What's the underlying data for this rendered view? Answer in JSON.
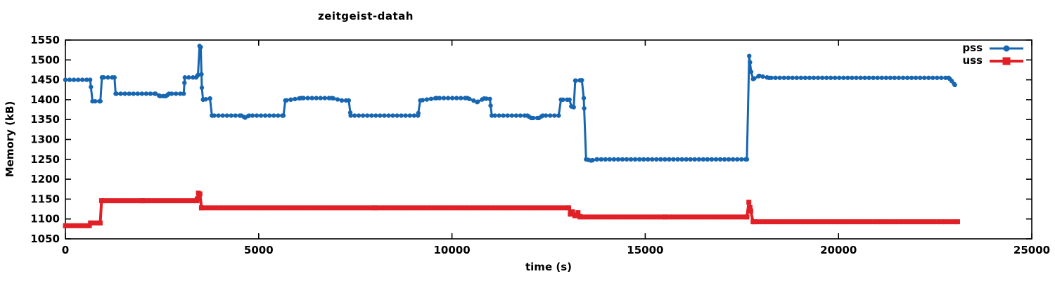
{
  "chart_data": {
    "type": "line",
    "title": "zeitgeist-datah",
    "xlabel": "time (s)",
    "ylabel": "Memory (kB)",
    "xlim": [
      0,
      25000
    ],
    "ylim": [
      1050,
      1550
    ],
    "xticks": [
      0,
      5000,
      10000,
      15000,
      20000,
      25000
    ],
    "yticks": [
      1050,
      1100,
      1150,
      1200,
      1250,
      1300,
      1350,
      1400,
      1450,
      1500,
      1550
    ],
    "grid": false,
    "legend_position": "top-right-inside",
    "background_color": "#ffffff",
    "border_color": "#000000",
    "text_color": "#000000",
    "marker_interval_s": 110,
    "series": [
      {
        "name": "pss",
        "color": "#1766b1",
        "marker": "circle",
        "line_width": 3,
        "points": [
          [
            0,
            1450
          ],
          [
            640,
            1450
          ],
          [
            700,
            1396
          ],
          [
            905,
            1396
          ],
          [
            945,
            1456
          ],
          [
            1270,
            1456
          ],
          [
            1300,
            1415
          ],
          [
            2330,
            1415
          ],
          [
            2450,
            1409
          ],
          [
            2600,
            1409
          ],
          [
            2680,
            1415
          ],
          [
            3060,
            1415
          ],
          [
            3090,
            1456
          ],
          [
            3380,
            1456
          ],
          [
            3430,
            1462
          ],
          [
            3470,
            1535
          ],
          [
            3500,
            1532
          ],
          [
            3530,
            1430
          ],
          [
            3560,
            1400
          ],
          [
            3740,
            1403
          ],
          [
            3790,
            1360
          ],
          [
            4550,
            1360
          ],
          [
            4650,
            1355
          ],
          [
            4750,
            1360
          ],
          [
            5640,
            1360
          ],
          [
            5690,
            1398
          ],
          [
            6100,
            1404
          ],
          [
            6900,
            1404
          ],
          [
            7150,
            1398
          ],
          [
            7330,
            1398
          ],
          [
            7380,
            1360
          ],
          [
            9120,
            1360
          ],
          [
            9180,
            1398
          ],
          [
            9600,
            1404
          ],
          [
            10400,
            1404
          ],
          [
            10650,
            1394
          ],
          [
            10830,
            1403
          ],
          [
            10980,
            1402
          ],
          [
            11030,
            1360
          ],
          [
            11950,
            1360
          ],
          [
            12050,
            1354
          ],
          [
            12250,
            1354
          ],
          [
            12350,
            1360
          ],
          [
            12760,
            1360
          ],
          [
            12820,
            1400
          ],
          [
            13040,
            1400
          ],
          [
            13090,
            1383
          ],
          [
            13150,
            1381
          ],
          [
            13190,
            1448
          ],
          [
            13360,
            1449
          ],
          [
            13410,
            1404
          ],
          [
            13470,
            1250
          ],
          [
            13600,
            1247
          ],
          [
            13750,
            1250
          ],
          [
            17630,
            1250
          ],
          [
            17690,
            1510
          ],
          [
            17740,
            1470
          ],
          [
            17790,
            1452
          ],
          [
            17950,
            1460
          ],
          [
            18200,
            1455
          ],
          [
            22850,
            1455
          ],
          [
            22930,
            1447
          ],
          [
            23010,
            1437
          ]
        ]
      },
      {
        "name": "uss",
        "color": "#e02026",
        "marker": "square",
        "line_width": 4,
        "points": [
          [
            0,
            1083
          ],
          [
            620,
            1083
          ],
          [
            650,
            1090
          ],
          [
            900,
            1090
          ],
          [
            935,
            1146
          ],
          [
            2000,
            1146
          ],
          [
            3400,
            1146
          ],
          [
            3440,
            1165
          ],
          [
            3480,
            1163
          ],
          [
            3520,
            1128
          ],
          [
            8000,
            1128
          ],
          [
            13020,
            1128
          ],
          [
            13060,
            1112
          ],
          [
            13120,
            1118
          ],
          [
            13180,
            1108
          ],
          [
            13260,
            1116
          ],
          [
            13320,
            1105
          ],
          [
            15500,
            1105
          ],
          [
            17630,
            1105
          ],
          [
            17680,
            1142
          ],
          [
            17730,
            1120
          ],
          [
            17790,
            1093
          ],
          [
            23080,
            1093
          ]
        ]
      }
    ]
  }
}
